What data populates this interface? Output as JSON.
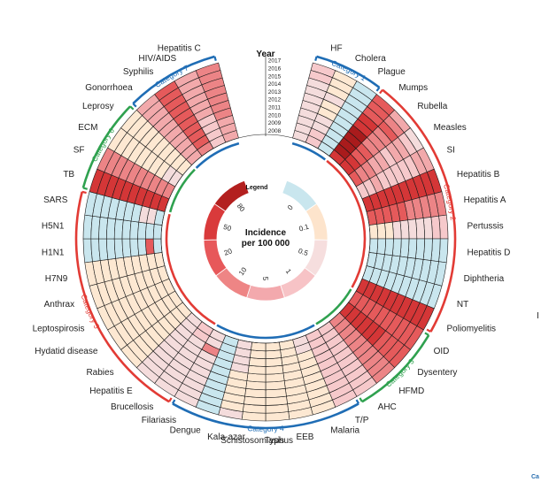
{
  "chart_data": {
    "type": "heatmap",
    "layout": "circular",
    "year_axis_title": "Year",
    "years": [
      "2017",
      "2016",
      "2015",
      "2014",
      "2013",
      "2012",
      "2011",
      "2010",
      "2009",
      "2008"
    ],
    "legend": {
      "title": "Legend",
      "label": "Incidence\nper 100 000",
      "ticks": [
        "0",
        "0.1",
        "0.5",
        "1",
        "5",
        "10",
        "20",
        "50",
        "80"
      ],
      "scale_colors": [
        "#c9e6ee",
        "#fde4cc",
        "#f6dede",
        "#f7c3c6",
        "#f3a9ad",
        "#ee8585",
        "#e7585a",
        "#d93a3b",
        "#b3201f"
      ]
    },
    "color_scale": [
      "#c9e6ee",
      "#fde8d2",
      "#f4dcdc",
      "#f6c9cb",
      "#f2a9ab",
      "#ec8486",
      "#e55a5b",
      "#d43637",
      "#a91b1c"
    ],
    "diseases": [
      {
        "name": "HF",
        "category": 1,
        "levels": [
          3,
          3,
          2,
          2,
          2,
          2,
          2,
          2,
          2,
          2
        ]
      },
      {
        "name": "Cholera",
        "category": 1,
        "levels": [
          1,
          1,
          1,
          2,
          1,
          1,
          2,
          2,
          3,
          3
        ]
      },
      {
        "name": "Plague",
        "category": 1,
        "levels": [
          0,
          0,
          0,
          0,
          0,
          0,
          0,
          0,
          0,
          0
        ]
      },
      {
        "name": "Mumps",
        "category": 2,
        "levels": [
          6,
          6,
          6,
          7,
          7,
          8,
          8,
          8,
          8,
          7
        ]
      },
      {
        "name": "Rubella",
        "category": 2,
        "levels": [
          4,
          5,
          6,
          5,
          5,
          5,
          6,
          6,
          7,
          7
        ]
      },
      {
        "name": "Measles",
        "category": 2,
        "levels": [
          2,
          3,
          4,
          4,
          3,
          4,
          4,
          5,
          5,
          6
        ]
      },
      {
        "name": "SI",
        "category": 2,
        "levels": [
          4,
          4,
          3,
          3,
          3,
          3,
          3,
          4,
          3,
          3
        ]
      },
      {
        "name": "Hepatitis B",
        "category": 2,
        "levels": [
          7,
          7,
          7,
          7,
          7,
          7,
          7,
          7,
          7,
          7
        ]
      },
      {
        "name": "Hepatitis A",
        "category": 2,
        "levels": [
          5,
          5,
          5,
          5,
          5,
          6,
          6,
          6,
          6,
          6
        ]
      },
      {
        "name": "Pertussis",
        "category": 2,
        "levels": [
          3,
          3,
          2,
          2,
          2,
          2,
          2,
          1,
          1,
          1
        ]
      },
      {
        "name": "Hepatitis D",
        "category": 2,
        "levels": [
          0,
          0,
          0,
          0,
          0,
          0,
          0,
          0,
          0,
          0
        ]
      },
      {
        "name": "Diphtheria",
        "category": 2,
        "levels": [
          0,
          0,
          0,
          0,
          0,
          0,
          0,
          0,
          0,
          0
        ]
      },
      {
        "name": "NT",
        "category": 2,
        "levels": [
          0,
          0,
          0,
          0,
          0,
          0,
          0,
          0,
          0,
          0
        ]
      },
      {
        "name": "Poliomyelitis",
        "category": 2,
        "levels": [
          7,
          7,
          7,
          7,
          7,
          7,
          7,
          7,
          7,
          7
        ]
      },
      {
        "name": "OID",
        "category": 3,
        "levels": [
          6,
          6,
          6,
          6,
          6,
          6,
          6,
          6,
          6,
          6
        ]
      },
      {
        "name": "Dysentery",
        "category": 3,
        "levels": [
          6,
          6,
          6,
          6,
          7,
          7,
          7,
          7,
          7,
          7
        ]
      },
      {
        "name": "HFMD",
        "category": 3,
        "levels": [
          5,
          5,
          5,
          5,
          5,
          5,
          5,
          5,
          5,
          5
        ]
      },
      {
        "name": "AHC",
        "category": 3,
        "levels": [
          3,
          3,
          3,
          3,
          3,
          3,
          3,
          3,
          3,
          3
        ]
      },
      {
        "name": "T/P",
        "category": 4,
        "levels": [
          3,
          3,
          3,
          3,
          3,
          3,
          3,
          3,
          3,
          3
        ]
      },
      {
        "name": "Malaria",
        "category": 4,
        "levels": [
          1,
          1,
          1,
          1,
          1,
          1,
          1,
          1,
          2,
          2
        ]
      },
      {
        "name": "EEB",
        "category": 4,
        "levels": [
          1,
          1,
          1,
          1,
          1,
          1,
          1,
          1,
          1,
          1
        ]
      },
      {
        "name": "Typhus",
        "category": 4,
        "levels": [
          1,
          1,
          1,
          1,
          1,
          1,
          1,
          1,
          1,
          1
        ]
      },
      {
        "name": "Schistosomiasis",
        "category": 4,
        "levels": [
          1,
          1,
          1,
          1,
          1,
          1,
          1,
          1,
          1,
          1
        ]
      },
      {
        "name": "Kala-azar",
        "category": 4,
        "levels": [
          2,
          1,
          1,
          1,
          1,
          1,
          2,
          2,
          2,
          2
        ]
      },
      {
        "name": "Dengue",
        "category": 4,
        "levels": [
          0,
          0,
          0,
          0,
          0,
          0,
          0,
          0,
          0,
          0
        ]
      },
      {
        "name": "Filariasis",
        "category": 4,
        "levels": [
          2,
          2,
          2,
          2,
          2,
          2,
          2,
          5,
          2,
          2
        ]
      },
      {
        "name": "Brucellosis",
        "category": 5,
        "levels": [
          2,
          2,
          2,
          2,
          2,
          2,
          2,
          2,
          3,
          3
        ]
      },
      {
        "name": "Hepatitis E",
        "category": 5,
        "levels": [
          2,
          2,
          2,
          2,
          2,
          2,
          2,
          2,
          2,
          2
        ]
      },
      {
        "name": "Rabies",
        "category": 5,
        "levels": [
          1,
          1,
          1,
          1,
          1,
          1,
          1,
          1,
          1,
          1
        ]
      },
      {
        "name": "Hydatid disease",
        "category": 5,
        "levels": [
          1,
          1,
          1,
          1,
          1,
          1,
          1,
          1,
          1,
          1
        ]
      },
      {
        "name": "Leptospirosis",
        "category": 5,
        "levels": [
          1,
          1,
          1,
          1,
          1,
          1,
          1,
          1,
          1,
          1
        ]
      },
      {
        "name": "Anthrax",
        "category": 5,
        "levels": [
          1,
          1,
          1,
          1,
          1,
          1,
          1,
          1,
          1,
          1
        ]
      },
      {
        "name": "H7N9",
        "category": 5,
        "levels": [
          1,
          1,
          1,
          1,
          1,
          1,
          1,
          1,
          1,
          1
        ]
      },
      {
        "name": "H1N1",
        "category": 5,
        "levels": [
          0,
          0,
          0,
          0,
          0,
          0,
          0,
          0,
          6,
          0
        ]
      },
      {
        "name": "H5N1",
        "category": 5,
        "levels": [
          0,
          0,
          0,
          0,
          0,
          0,
          0,
          0,
          0,
          0
        ]
      },
      {
        "name": "SARS",
        "category": 5,
        "levels": [
          0,
          0,
          0,
          0,
          0,
          0,
          0,
          2,
          2,
          0
        ]
      },
      {
        "name": "TB",
        "category": 6,
        "levels": [
          7,
          7,
          7,
          7,
          7,
          7,
          7,
          7,
          7,
          7
        ]
      },
      {
        "name": "SF",
        "category": 6,
        "levels": [
          5,
          5,
          5,
          5,
          5,
          5,
          5,
          5,
          5,
          5
        ]
      },
      {
        "name": "ECM",
        "category": 6,
        "levels": [
          1,
          1,
          1,
          1,
          1,
          1,
          1,
          1,
          2,
          2
        ]
      },
      {
        "name": "Leprosy",
        "category": 6,
        "levels": [
          1,
          1,
          1,
          1,
          1,
          1,
          1,
          1,
          1,
          1
        ]
      },
      {
        "name": "Gonorrhoea",
        "category": 7,
        "levels": [
          4,
          4,
          4,
          4,
          4,
          4,
          4,
          4,
          4,
          4
        ]
      },
      {
        "name": "Syphilis",
        "category": 7,
        "levels": [
          6,
          6,
          6,
          6,
          6,
          6,
          6,
          6,
          6,
          5
        ]
      },
      {
        "name": "HIV/AIDS",
        "category": 7,
        "levels": [
          4,
          4,
          4,
          4,
          4,
          4,
          3,
          3,
          3,
          3
        ]
      },
      {
        "name": "Hepatitis C",
        "category": 7,
        "levels": [
          5,
          5,
          5,
          5,
          5,
          5,
          5,
          4,
          4,
          4
        ]
      }
    ],
    "categories": [
      {
        "id": 1,
        "label": "Category 1",
        "color": "#1f6db5"
      },
      {
        "id": 2,
        "label": "Category 2",
        "color": "#e23b35"
      },
      {
        "id": 3,
        "label": "Category 3",
        "color": "#2fa14f"
      },
      {
        "id": 4,
        "label": "Category 4",
        "color": "#1f6db5"
      },
      {
        "id": 5,
        "label": "Category 5",
        "color": "#e23b35"
      },
      {
        "id": 6,
        "label": "Category 6",
        "color": "#2fa14f"
      },
      {
        "id": 7,
        "label": "Category 7",
        "color": "#1f6db5"
      }
    ],
    "corner_fragment": "Ca",
    "edge_fragment": "I"
  }
}
